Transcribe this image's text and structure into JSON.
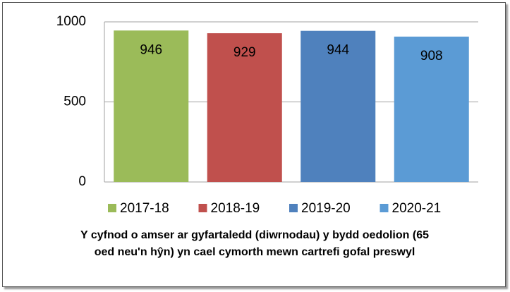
{
  "chart_data": {
    "type": "bar",
    "title": "Y cyfnod o amser ar gyfartaledd (diwrnodau) y bydd oedolion (65 oed neu'n hŷn) yn cael cymorth mewn cartrefi gofal preswyl",
    "series": [
      {
        "name": "2017-18",
        "color": "#9bbb59",
        "values": [
          946
        ]
      },
      {
        "name": "2018-19",
        "color": "#c0504d",
        "values": [
          929
        ]
      },
      {
        "name": "2019-20",
        "color": "#4f81bd",
        "values": [
          944
        ]
      },
      {
        "name": "2020-21",
        "color": "#5b9bd5",
        "values": [
          908
        ]
      }
    ],
    "ylim": [
      0,
      1000
    ],
    "yticks": [
      0,
      500,
      1000
    ],
    "grid": true,
    "legend": "bottom"
  }
}
